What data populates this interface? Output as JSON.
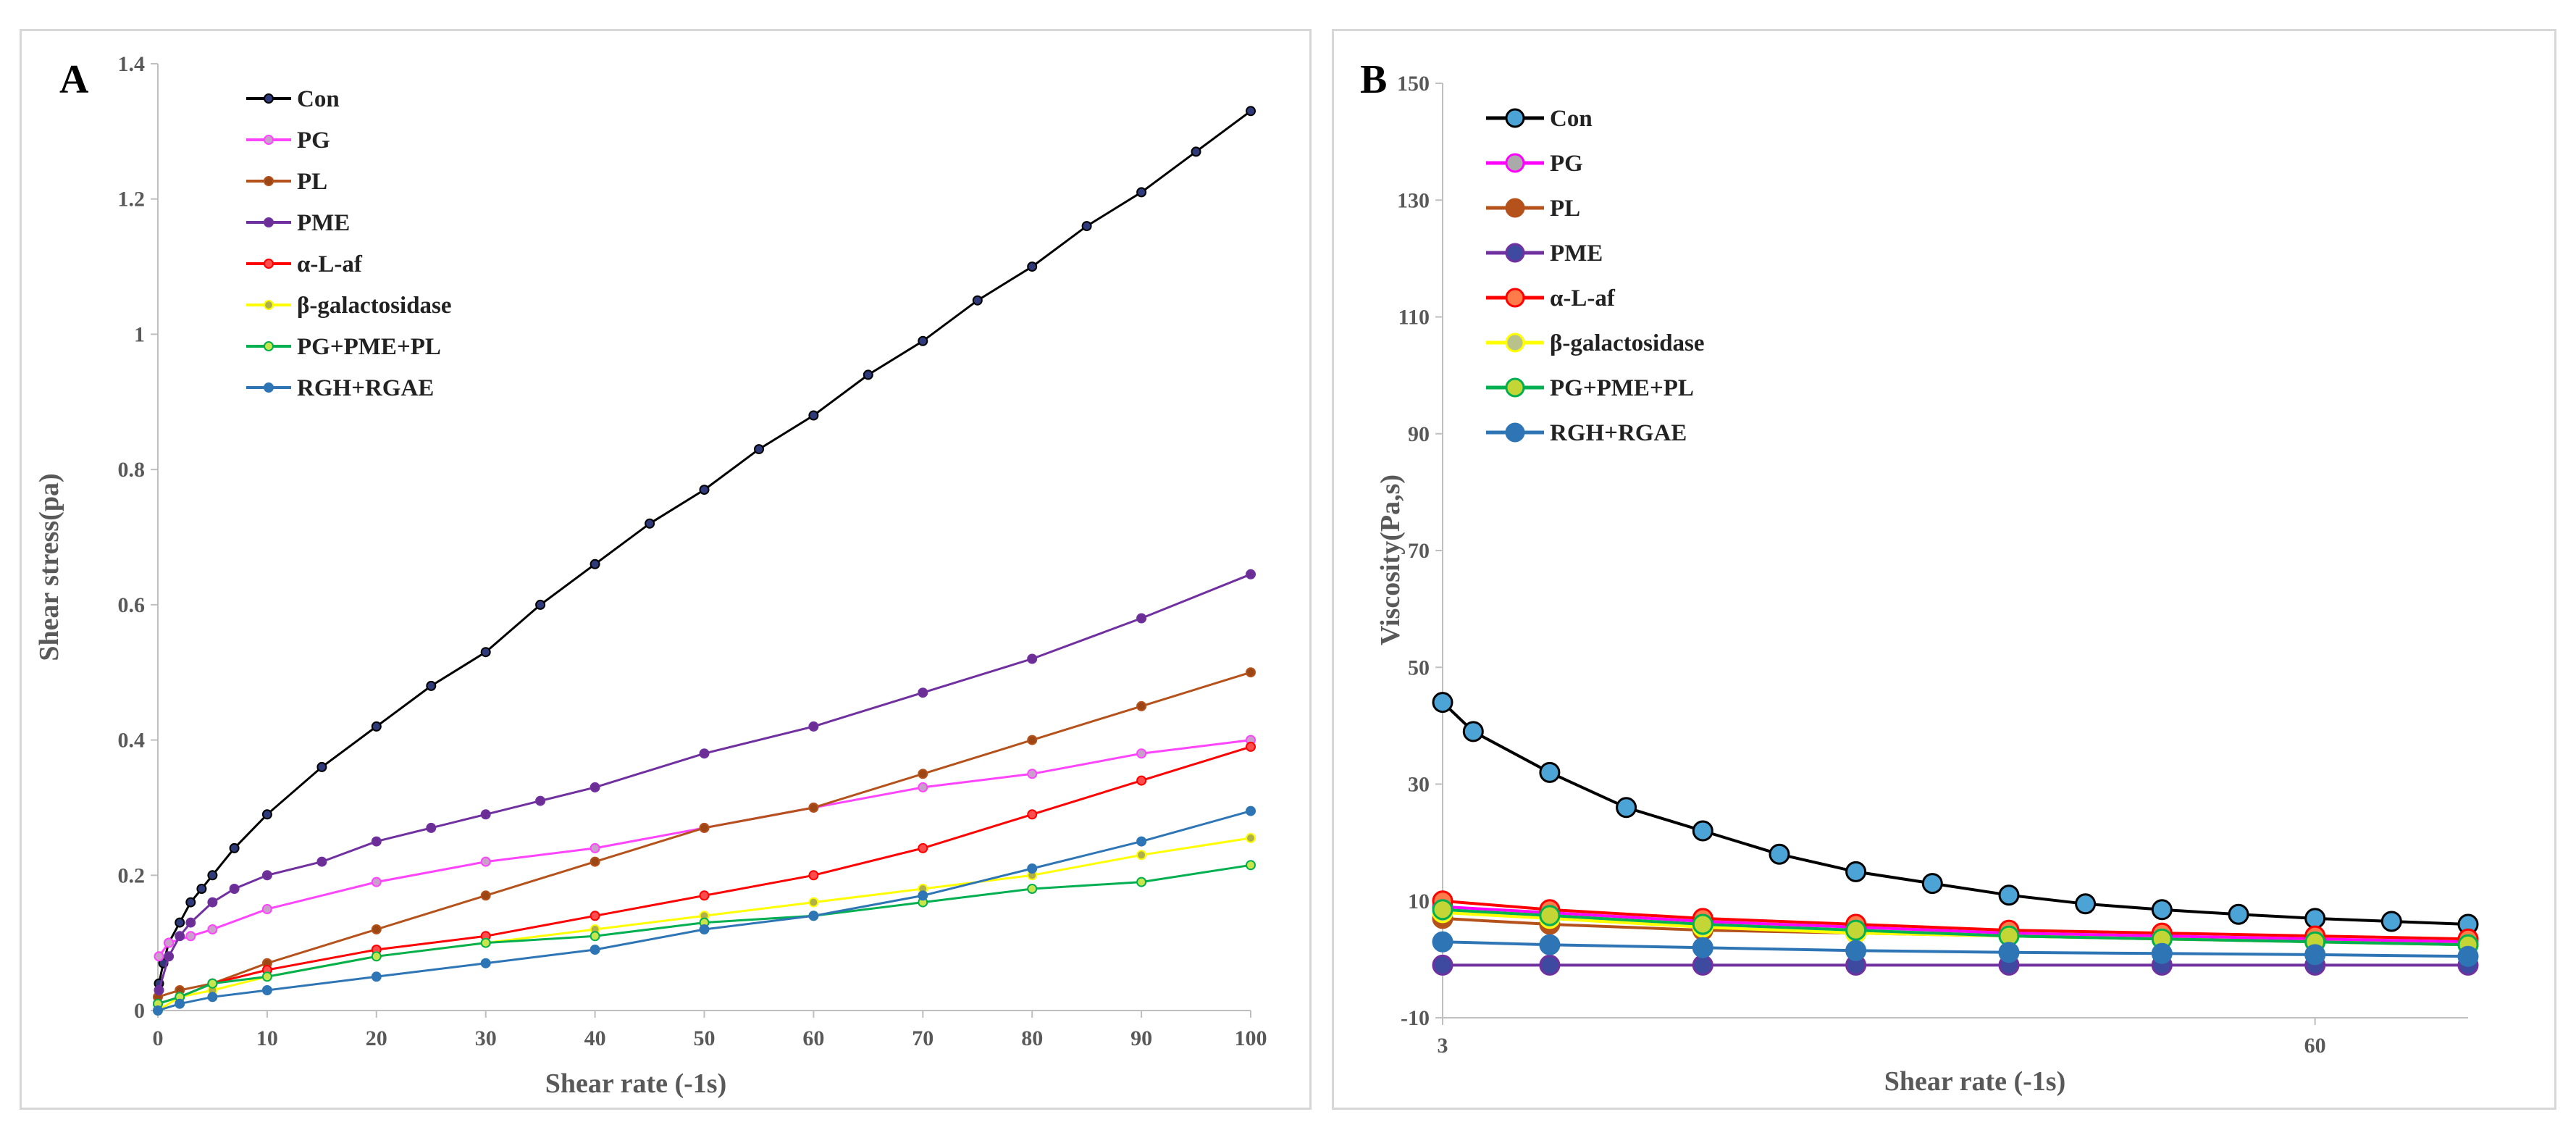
{
  "chart_data": [
    {
      "type": "line",
      "panel_label": "A",
      "xlabel": "Shear rate (-1s)",
      "ylabel": "Shear stress(pa)",
      "xlim": [
        0,
        100
      ],
      "ylim": [
        0,
        1.4
      ],
      "xticks": [
        "0",
        "10",
        "20",
        "30",
        "40",
        "50",
        "60",
        "70",
        "80",
        "90",
        "100"
      ],
      "yticks": [
        "0",
        "0.2",
        "0.4",
        "0.6",
        "0.8",
        "1",
        "1.2",
        "1.4"
      ],
      "grid": false,
      "legend_position": "top-left",
      "series": [
        {
          "name": "Con",
          "color": "#000000",
          "marker_color": "#2e3a7a",
          "x": [
            0.1,
            0.5,
            1,
            2,
            3,
            4,
            5,
            7,
            10,
            15,
            20,
            25,
            30,
            35,
            40,
            45,
            50,
            55,
            60,
            65,
            70,
            75,
            80,
            85,
            90,
            95,
            100
          ],
          "y": [
            0.04,
            0.07,
            0.1,
            0.13,
            0.16,
            0.18,
            0.2,
            0.24,
            0.29,
            0.36,
            0.42,
            0.48,
            0.53,
            0.6,
            0.66,
            0.72,
            0.77,
            0.83,
            0.88,
            0.94,
            0.99,
            1.05,
            1.1,
            1.16,
            1.21,
            1.27,
            1.33
          ]
        },
        {
          "name": "PG",
          "color": "#ff44ff",
          "marker_color": "#c9a0c9",
          "x": [
            0.1,
            1,
            3,
            5,
            10,
            20,
            30,
            40,
            50,
            60,
            70,
            80,
            90,
            100
          ],
          "y": [
            0.08,
            0.1,
            0.11,
            0.12,
            0.15,
            0.19,
            0.22,
            0.24,
            0.27,
            0.3,
            0.33,
            0.35,
            0.38,
            0.4
          ]
        },
        {
          "name": "PL",
          "color": "#b5521b",
          "marker_color": "#9c4615",
          "x": [
            0,
            2,
            5,
            10,
            20,
            30,
            40,
            50,
            60,
            70,
            80,
            90,
            100
          ],
          "y": [
            0.02,
            0.03,
            0.04,
            0.07,
            0.12,
            0.17,
            0.22,
            0.27,
            0.3,
            0.35,
            0.4,
            0.45,
            0.5
          ]
        },
        {
          "name": "PME",
          "color": "#7030a0",
          "marker_color": "#6a2e94",
          "x": [
            0.1,
            1,
            2,
            3,
            5,
            7,
            10,
            15,
            20,
            25,
            30,
            35,
            40,
            50,
            60,
            70,
            80,
            90,
            100
          ],
          "y": [
            0.03,
            0.08,
            0.11,
            0.13,
            0.16,
            0.18,
            0.2,
            0.22,
            0.25,
            0.27,
            0.29,
            0.31,
            0.33,
            0.38,
            0.42,
            0.47,
            0.52,
            0.58,
            0.645
          ]
        },
        {
          "name": "α-L-af",
          "color": "#ff0000",
          "marker_color": "#ff4d4d",
          "x": [
            0,
            2,
            5,
            10,
            20,
            30,
            40,
            50,
            60,
            70,
            80,
            90,
            100
          ],
          "y": [
            0.01,
            0.02,
            0.04,
            0.06,
            0.09,
            0.11,
            0.14,
            0.17,
            0.2,
            0.24,
            0.29,
            0.34,
            0.39
          ]
        },
        {
          "name": "β-galactosidase",
          "color": "#ffff00",
          "marker_color": "#b0b04a",
          "x": [
            0,
            2,
            5,
            10,
            20,
            30,
            40,
            50,
            60,
            70,
            80,
            90,
            100
          ],
          "y": [
            0.0,
            0.02,
            0.03,
            0.05,
            0.08,
            0.1,
            0.12,
            0.14,
            0.16,
            0.18,
            0.2,
            0.23,
            0.255
          ]
        },
        {
          "name": "PG+PME+PL",
          "color": "#00b050",
          "marker_color": "#c8e64c",
          "x": [
            0,
            2,
            5,
            10,
            20,
            30,
            40,
            50,
            60,
            70,
            80,
            90,
            100
          ],
          "y": [
            0.01,
            0.02,
            0.04,
            0.05,
            0.08,
            0.1,
            0.11,
            0.13,
            0.14,
            0.16,
            0.18,
            0.19,
            0.215
          ]
        },
        {
          "name": "RGH+RGAE",
          "color": "#2e75b6",
          "marker_color": "#2e75b6",
          "x": [
            0,
            2,
            5,
            10,
            20,
            30,
            40,
            50,
            60,
            70,
            80,
            90,
            100
          ],
          "y": [
            0.0,
            0.01,
            0.02,
            0.03,
            0.05,
            0.07,
            0.09,
            0.12,
            0.14,
            0.17,
            0.21,
            0.25,
            0.295
          ]
        }
      ]
    },
    {
      "type": "line",
      "panel_label": "B",
      "xlabel": "Shear rate (-1s)",
      "ylabel": "Viscosity(Pa,s)",
      "xlim": [
        3,
        70
      ],
      "ylim": [
        -10,
        150
      ],
      "xticks": [
        "3",
        "60"
      ],
      "xtick_values": [
        3,
        60
      ],
      "yticks": [
        "-10",
        "10",
        "30",
        "50",
        "70",
        "90",
        "110",
        "130",
        "150"
      ],
      "grid": false,
      "legend_position": "top-left",
      "series": [
        {
          "name": "Con",
          "color": "#000000",
          "marker_color": "#4ba3d6",
          "x": [
            3,
            5,
            10,
            15,
            20,
            25,
            30,
            35,
            40,
            45,
            50,
            55,
            60,
            65,
            70
          ],
          "y": [
            44,
            39,
            32,
            26,
            22,
            18,
            15,
            13,
            11,
            9.5,
            8.5,
            7.7,
            7,
            6.5,
            6
          ]
        },
        {
          "name": "PG",
          "color": "#ff00ff",
          "marker_color": "#aaaaaa",
          "x": [
            3,
            10,
            20,
            30,
            40,
            50,
            60,
            70
          ],
          "y": [
            9,
            8,
            6.5,
            5.5,
            4.5,
            4,
            3.5,
            3
          ]
        },
        {
          "name": "PL",
          "color": "#b5521b",
          "marker_color": "#b5521b",
          "x": [
            3,
            10,
            20,
            30,
            40,
            50,
            60,
            70
          ],
          "y": [
            7,
            6,
            5,
            4.5,
            4,
            3.5,
            3,
            2.5
          ]
        },
        {
          "name": "PME",
          "color": "#7030a0",
          "marker_color": "#3d4aa0",
          "x": [
            3,
            10,
            20,
            30,
            40,
            50,
            60,
            70
          ],
          "y": [
            -1,
            -1,
            -1,
            -1,
            -1,
            -1,
            -1,
            -1
          ]
        },
        {
          "name": "α-L-af",
          "color": "#ff0000",
          "marker_color": "#ff7c4a",
          "x": [
            3,
            10,
            20,
            30,
            40,
            50,
            60,
            70
          ],
          "y": [
            10,
            8.5,
            7,
            6,
            5,
            4.5,
            4,
            3.5
          ]
        },
        {
          "name": "β-galactosidase",
          "color": "#ffff00",
          "marker_color": "#b8c28a",
          "x": [
            3,
            10,
            20,
            30,
            40,
            50,
            60,
            70
          ],
          "y": [
            8,
            7,
            5.5,
            4.5,
            4,
            3.5,
            3,
            2.5
          ]
        },
        {
          "name": "PG+PME+PL",
          "color": "#00b050",
          "marker_color": "#c4d636",
          "x": [
            3,
            10,
            20,
            30,
            40,
            50,
            60,
            70
          ],
          "y": [
            8.5,
            7.5,
            6,
            5,
            4,
            3.5,
            3,
            2.5
          ]
        },
        {
          "name": "RGH+RGAE",
          "color": "#2e75b6",
          "marker_color": "#2e75b6",
          "x": [
            3,
            10,
            20,
            30,
            40,
            50,
            60,
            70
          ],
          "y": [
            3,
            2.5,
            2,
            1.5,
            1.2,
            1,
            0.8,
            0.5
          ]
        }
      ]
    }
  ]
}
